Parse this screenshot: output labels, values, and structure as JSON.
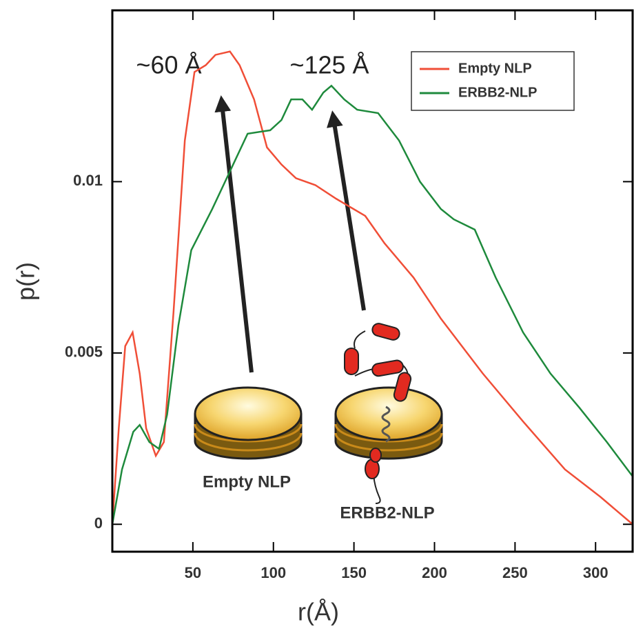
{
  "chart_data": {
    "type": "line",
    "xlabel": "r(Å)",
    "ylabel": "p(r)",
    "xlim": [
      0,
      323
    ],
    "ylim": [
      -0.0008,
      0.015
    ],
    "xticks": [
      50,
      100,
      150,
      200,
      250,
      300
    ],
    "yticks": [
      0,
      0.005,
      0.01
    ],
    "legend": "upper right",
    "annotations": [
      "~60 Å",
      "~125 Å",
      "Empty NLP",
      "ERBB2-NLP"
    ],
    "series": [
      {
        "name": "Empty NLP",
        "color": "#f04e37",
        "x": [
          0,
          4,
          8,
          12.6,
          17,
          21,
          27,
          32,
          38,
          45,
          51,
          58,
          64,
          73,
          79,
          88,
          96,
          105,
          114,
          126,
          139,
          157,
          169,
          187,
          204,
          230,
          255,
          281,
          303,
          323
        ],
        "values": [
          0,
          0.0028,
          0.0052,
          0.0056,
          0.0044,
          0.0028,
          0.002,
          0.0024,
          0.0062,
          0.0112,
          0.0132,
          0.0134,
          0.0137,
          0.0138,
          0.0134,
          0.0124,
          0.011,
          0.0105,
          0.0101,
          0.0099,
          0.0095,
          0.009,
          0.0082,
          0.0072,
          0.006,
          0.0044,
          0.003,
          0.0016,
          0.0008,
          0
        ]
      },
      {
        "name": "ERBB2-NLP",
        "color": "#1e8a3c",
        "x": [
          0,
          6,
          13,
          17,
          23,
          29,
          34,
          41,
          49,
          62,
          75,
          84,
          98,
          105,
          111,
          118,
          124,
          131,
          136,
          144,
          152,
          165,
          178,
          191,
          204,
          212,
          225,
          238,
          255,
          272,
          290,
          307,
          323
        ],
        "values": [
          0,
          0.0016,
          0.0027,
          0.0029,
          0.0024,
          0.0022,
          0.0032,
          0.0058,
          0.008,
          0.0092,
          0.0105,
          0.0114,
          0.0115,
          0.0118,
          0.0124,
          0.0124,
          0.0121,
          0.0126,
          0.0128,
          0.0124,
          0.0121,
          0.012,
          0.0112,
          0.01,
          0.0092,
          0.0089,
          0.0086,
          0.0072,
          0.0056,
          0.0044,
          0.0034,
          0.0024,
          0.0014
        ]
      }
    ]
  }
}
